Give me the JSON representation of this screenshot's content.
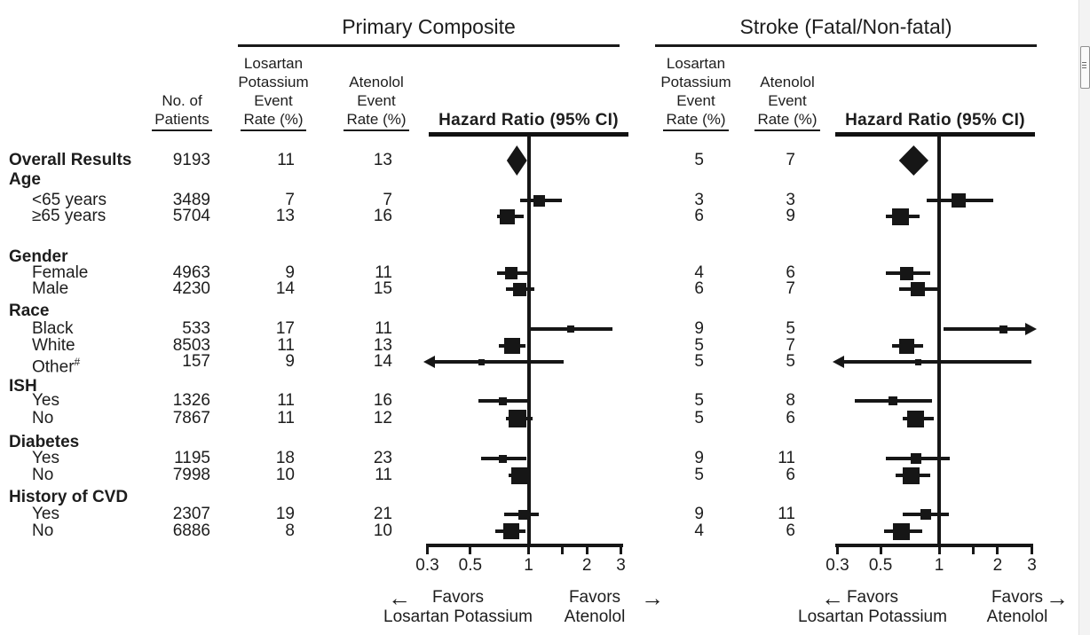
{
  "sections": {
    "primary": {
      "title": "Primary Composite"
    },
    "stroke": {
      "title": "Stroke (Fatal/Non-fatal)"
    }
  },
  "headers": {
    "patients": [
      "No. of",
      "Patients"
    ],
    "losartan": [
      "Losartan",
      "Potassium",
      "Event",
      "Rate (%)"
    ],
    "atenolol": [
      "Atenolol",
      "Event",
      "Rate (%)"
    ],
    "hazard": "Hazard Ratio (95% CI)"
  },
  "favors": {
    "favors_label": "Favors",
    "left_group": "Losartan Potassium",
    "right_group": "Atenolol",
    "left_arrow": "←",
    "right_arrow": "→"
  },
  "rows": [
    {
      "id": "overall",
      "label": "Overall Results",
      "bold": true,
      "patients": "9193",
      "pc_los": "11",
      "pc_at": "13",
      "st_los": "5",
      "st_at": "7"
    },
    {
      "id": "age",
      "label": "Age",
      "group": true
    },
    {
      "id": "age_lt65",
      "label": "<65 years",
      "patients": "3489",
      "pc_los": "7",
      "pc_at": "7",
      "st_los": "3",
      "st_at": "3"
    },
    {
      "id": "age_ge65",
      "label": "≥65 years",
      "patients": "5704",
      "pc_los": "13",
      "pc_at": "16",
      "st_los": "6",
      "st_at": "9"
    },
    {
      "id": "gender",
      "label": "Gender",
      "group": true
    },
    {
      "id": "female",
      "label": "Female",
      "patients": "4963",
      "pc_los": "9",
      "pc_at": "11",
      "st_los": "4",
      "st_at": "6"
    },
    {
      "id": "male",
      "label": "Male",
      "patients": "4230",
      "pc_los": "14",
      "pc_at": "15",
      "st_los": "6",
      "st_at": "7"
    },
    {
      "id": "race",
      "label": "Race",
      "group": true
    },
    {
      "id": "black",
      "label": "Black",
      "patients": "533",
      "pc_los": "17",
      "pc_at": "11",
      "st_los": "9",
      "st_at": "5"
    },
    {
      "id": "white",
      "label": "White",
      "patients": "8503",
      "pc_los": "11",
      "pc_at": "13",
      "st_los": "5",
      "st_at": "7"
    },
    {
      "id": "other",
      "label": "Other",
      "sup": "#",
      "patients": "157",
      "pc_los": "9",
      "pc_at": "14",
      "st_los": "5",
      "st_at": "5"
    },
    {
      "id": "ish",
      "label": "ISH",
      "group": true
    },
    {
      "id": "ish_yes",
      "label": "Yes",
      "patients": "1326",
      "pc_los": "11",
      "pc_at": "16",
      "st_los": "5",
      "st_at": "8"
    },
    {
      "id": "ish_no",
      "label": "No",
      "patients": "7867",
      "pc_los": "11",
      "pc_at": "12",
      "st_los": "5",
      "st_at": "6"
    },
    {
      "id": "diabetes",
      "label": "Diabetes",
      "group": true
    },
    {
      "id": "dm_yes",
      "label": "Yes",
      "patients": "1195",
      "pc_los": "18",
      "pc_at": "23",
      "st_los": "9",
      "st_at": "11"
    },
    {
      "id": "dm_no",
      "label": "No",
      "patients": "7998",
      "pc_los": "10",
      "pc_at": "11",
      "st_los": "5",
      "st_at": "6"
    },
    {
      "id": "cvd",
      "label": "History of CVD",
      "group": true
    },
    {
      "id": "cvd_yes",
      "label": "Yes",
      "patients": "2307",
      "pc_los": "19",
      "pc_at": "21",
      "st_los": "9",
      "st_at": "11"
    },
    {
      "id": "cvd_no",
      "label": "No",
      "patients": "6886",
      "pc_los": "8",
      "pc_at": "10",
      "st_los": "4",
      "st_at": "6"
    }
  ],
  "chart_data": [
    {
      "type": "forest",
      "title": "Primary Composite",
      "xlabel": "Hazard Ratio (95% CI)",
      "x_axis": {
        "scale": "log",
        "min": 0.3,
        "max": 3,
        "ref_line": 1,
        "ticks": [
          0.3,
          0.5,
          1,
          1.5,
          2,
          3
        ],
        "tick_labels": [
          "0.3",
          "0.5",
          "1",
          "",
          "2",
          "3"
        ]
      },
      "favors_left": "Favors Losartan Potassium",
      "favors_right": "Favors Atenolol",
      "categories": [
        "Overall Results",
        "<65 years",
        "≥65 years",
        "Female",
        "Male",
        "Black",
        "White",
        "Other",
        "ISH Yes",
        "ISH No",
        "Diabetes Yes",
        "Diabetes No",
        "History of CVD Yes",
        "History of CVD No"
      ],
      "series": [
        {
          "name": "Losartan Potassium Event Rate (%)",
          "values": [
            11,
            7,
            13,
            9,
            14,
            17,
            11,
            9,
            11,
            11,
            18,
            10,
            19,
            8
          ]
        },
        {
          "name": "Atenolol Event Rate (%)",
          "values": [
            13,
            7,
            16,
            11,
            15,
            11,
            13,
            14,
            16,
            12,
            23,
            11,
            21,
            10
          ]
        }
      ],
      "points": [
        {
          "row": "overall",
          "hr": 0.87,
          "ci_low": 0.77,
          "ci_high": 0.98,
          "marker": "diamond"
        },
        {
          "row": "age_lt65",
          "hr": 1.13,
          "ci_low": 0.9,
          "ci_high": 1.49,
          "weight": 13
        },
        {
          "row": "age_ge65",
          "hr": 0.78,
          "ci_low": 0.69,
          "ci_high": 0.94,
          "weight": 17
        },
        {
          "row": "female",
          "hr": 0.81,
          "ci_low": 0.69,
          "ci_high": 0.99,
          "weight": 14
        },
        {
          "row": "male",
          "hr": 0.9,
          "ci_low": 0.76,
          "ci_high": 1.07,
          "weight": 15
        },
        {
          "row": "black",
          "hr": 1.65,
          "ci_low": 1.03,
          "ci_high": 2.71,
          "weight": 8
        },
        {
          "row": "white",
          "hr": 0.82,
          "ci_low": 0.7,
          "ci_high": 0.96,
          "weight": 18
        },
        {
          "row": "other",
          "hr": 0.57,
          "ci_low": 0.28,
          "ci_high": 1.52,
          "weight": 7,
          "arrow_low": true
        },
        {
          "row": "ish_yes",
          "hr": 0.74,
          "ci_low": 0.55,
          "ci_high": 1.03,
          "weight": 9
        },
        {
          "row": "ish_no",
          "hr": 0.88,
          "ci_low": 0.76,
          "ci_high": 1.05,
          "weight": 20
        },
        {
          "row": "dm_yes",
          "hr": 0.74,
          "ci_low": 0.57,
          "ci_high": 0.97,
          "weight": 9
        },
        {
          "row": "dm_no",
          "hr": 0.9,
          "ci_low": 0.79,
          "ci_high": 1.03,
          "weight": 19
        },
        {
          "row": "cvd_yes",
          "hr": 0.94,
          "ci_low": 0.75,
          "ci_high": 1.13,
          "weight": 11
        },
        {
          "row": "cvd_no",
          "hr": 0.81,
          "ci_low": 0.67,
          "ci_high": 0.96,
          "weight": 18
        }
      ]
    },
    {
      "type": "forest",
      "title": "Stroke (Fatal/Non-fatal)",
      "xlabel": "Hazard Ratio (95% CI)",
      "x_axis": {
        "scale": "log",
        "min": 0.3,
        "max": 3,
        "ref_line": 1,
        "ticks": [
          0.3,
          0.5,
          1,
          1.5,
          2,
          3
        ],
        "tick_labels": [
          "0.3",
          "0.5",
          "1",
          "",
          "2",
          "3"
        ]
      },
      "favors_left": "Favors Losartan Potassium",
      "favors_right": "Favors Atenolol",
      "categories": [
        "Overall Results",
        "<65 years",
        "≥65 years",
        "Female",
        "Male",
        "Black",
        "White",
        "Other",
        "ISH Yes",
        "ISH No",
        "Diabetes Yes",
        "Diabetes No",
        "History of CVD Yes",
        "History of CVD No"
      ],
      "series": [
        {
          "name": "Losartan Potassium Event Rate (%)",
          "values": [
            5,
            3,
            6,
            4,
            6,
            9,
            5,
            5,
            5,
            5,
            9,
            5,
            9,
            4
          ]
        },
        {
          "name": "Atenolol Event Rate (%)",
          "values": [
            7,
            3,
            9,
            6,
            7,
            5,
            7,
            5,
            8,
            6,
            11,
            6,
            11,
            6
          ]
        }
      ],
      "points": [
        {
          "row": "overall",
          "hr": 0.74,
          "ci_low": 0.62,
          "ci_high": 0.88,
          "marker": "diamond"
        },
        {
          "row": "age_lt65",
          "hr": 1.26,
          "ci_low": 0.86,
          "ci_high": 1.9,
          "weight": 16
        },
        {
          "row": "age_ge65",
          "hr": 0.63,
          "ci_low": 0.53,
          "ci_high": 0.79,
          "weight": 19
        },
        {
          "row": "female",
          "hr": 0.68,
          "ci_low": 0.53,
          "ci_high": 0.9,
          "weight": 15
        },
        {
          "row": "male",
          "hr": 0.78,
          "ci_low": 0.62,
          "ci_high": 0.99,
          "weight": 16
        },
        {
          "row": "black",
          "hr": 2.15,
          "ci_low": 1.05,
          "ci_high": 3.2,
          "weight": 9,
          "arrow_high": true
        },
        {
          "row": "white",
          "hr": 0.68,
          "ci_low": 0.57,
          "ci_high": 0.83,
          "weight": 17
        },
        {
          "row": "other",
          "hr": 0.78,
          "ci_low": 0.28,
          "ci_high": 3.0,
          "weight": 7,
          "arrow_low": true
        },
        {
          "row": "ish_yes",
          "hr": 0.58,
          "ci_low": 0.37,
          "ci_high": 0.92,
          "weight": 10
        },
        {
          "row": "ish_no",
          "hr": 0.76,
          "ci_low": 0.65,
          "ci_high": 0.94,
          "weight": 19
        },
        {
          "row": "dm_yes",
          "hr": 0.76,
          "ci_low": 0.53,
          "ci_high": 1.13,
          "weight": 12
        },
        {
          "row": "dm_no",
          "hr": 0.72,
          "ci_low": 0.6,
          "ci_high": 0.9,
          "weight": 19
        },
        {
          "row": "cvd_yes",
          "hr": 0.85,
          "ci_low": 0.65,
          "ci_high": 1.12,
          "weight": 12
        },
        {
          "row": "cvd_no",
          "hr": 0.64,
          "ci_low": 0.52,
          "ci_high": 0.82,
          "weight": 19
        }
      ]
    }
  ],
  "scrollbar": {
    "present": true
  }
}
